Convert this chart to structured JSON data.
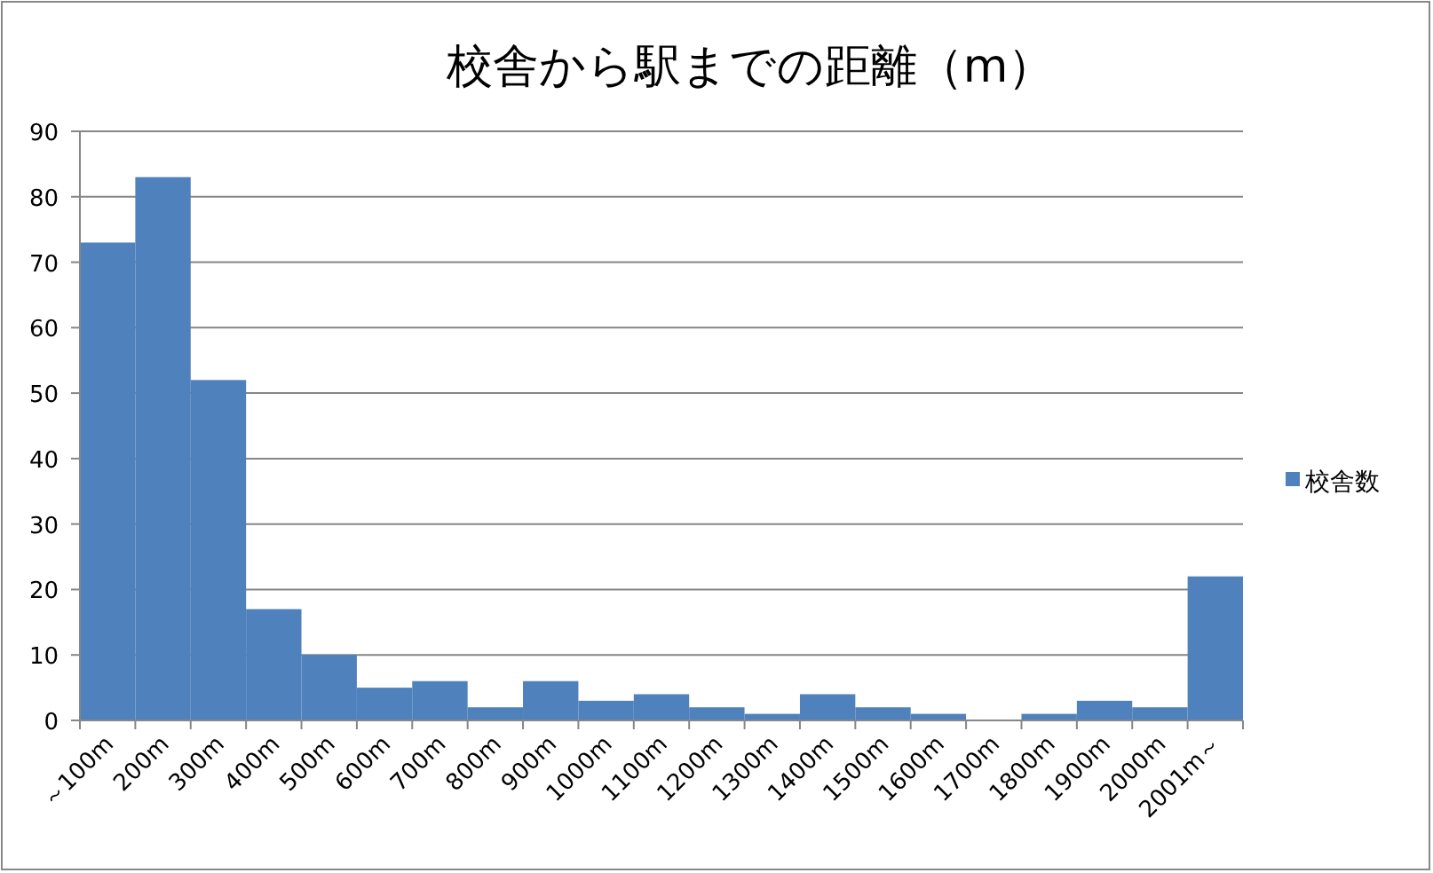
{
  "chart_data": {
    "type": "bar",
    "title": "校舎から駅までの距離（m）",
    "categories": [
      "～100m",
      "200m",
      "300m",
      "400m",
      "500m",
      "600m",
      "700m",
      "800m",
      "900m",
      "1000m",
      "1100m",
      "1200m",
      "1300m",
      "1400m",
      "1500m",
      "1600m",
      "1700m",
      "1800m",
      "1900m",
      "2000m",
      "2001m～"
    ],
    "series": [
      {
        "name": "校舎数",
        "color": "#4f81bd",
        "values": [
          73,
          83,
          52,
          17,
          10,
          5,
          6,
          2,
          6,
          3,
          4,
          2,
          1,
          4,
          2,
          1,
          0,
          1,
          3,
          2,
          22
        ]
      }
    ],
    "ylim": [
      0,
      90
    ],
    "yticks": [
      0,
      10,
      20,
      30,
      40,
      50,
      60,
      70,
      80,
      90
    ],
    "grid": "y",
    "legend": "right"
  }
}
